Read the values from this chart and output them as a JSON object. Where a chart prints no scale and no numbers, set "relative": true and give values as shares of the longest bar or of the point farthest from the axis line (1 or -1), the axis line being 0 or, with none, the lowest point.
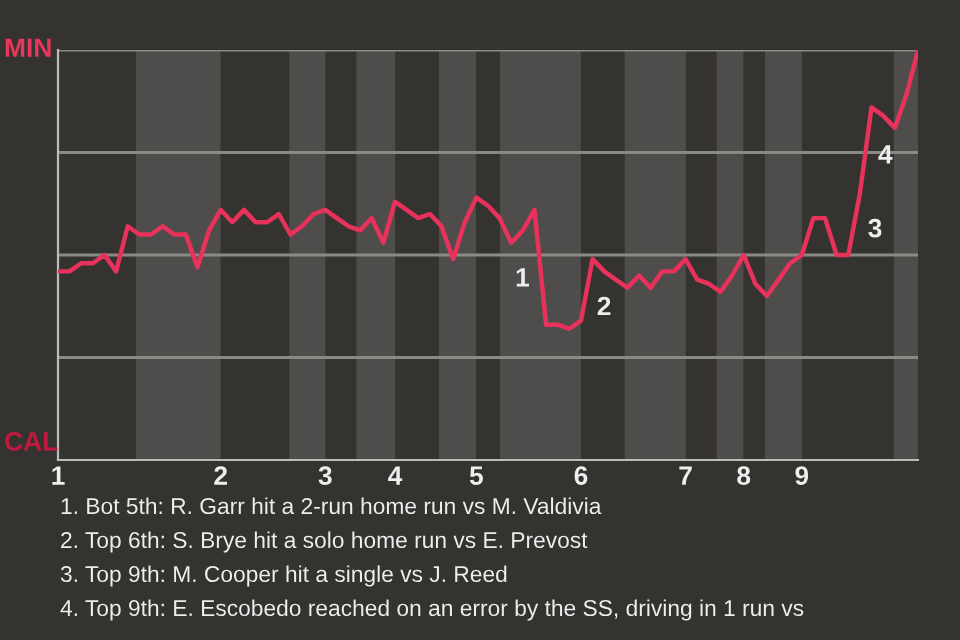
{
  "chart_data": {
    "type": "line",
    "relative": true,
    "categories": [
      "1",
      null,
      null,
      null,
      null,
      null,
      null,
      null,
      null,
      null,
      null,
      null,
      null,
      null,
      "2",
      null,
      null,
      null,
      null,
      null,
      null,
      null,
      null,
      "3",
      null,
      null,
      null,
      null,
      null,
      "4",
      null,
      null,
      null,
      null,
      null,
      null,
      "5",
      null,
      null,
      null,
      null,
      null,
      null,
      null,
      null,
      "6",
      null,
      null,
      null,
      null,
      null,
      null,
      null,
      null,
      "7",
      null,
      null,
      null,
      null,
      "8",
      null,
      null,
      null,
      null,
      "9",
      null,
      null,
      null,
      null,
      null,
      null,
      null,
      null,
      null,
      null
    ],
    "series": [
      {
        "color": "#e8315b",
        "values": [
          0.46,
          0.46,
          0.48,
          0.48,
          0.5,
          0.46,
          0.57,
          0.55,
          0.55,
          0.57,
          0.55,
          0.55,
          0.47,
          0.56,
          0.61,
          0.58,
          0.61,
          0.58,
          0.58,
          0.6,
          0.55,
          0.57,
          0.6,
          0.61,
          0.59,
          0.57,
          0.56,
          0.59,
          0.53,
          0.63,
          0.61,
          0.59,
          0.6,
          0.57,
          0.49,
          0.58,
          0.64,
          0.62,
          0.59,
          0.53,
          0.56,
          0.61,
          0.33,
          0.33,
          0.32,
          0.34,
          0.49,
          0.46,
          0.44,
          0.42,
          0.45,
          0.42,
          0.46,
          0.46,
          0.49,
          0.44,
          0.43,
          0.41,
          0.45,
          0.5,
          0.43,
          0.4,
          0.44,
          0.48,
          0.5,
          0.59,
          0.59,
          0.5,
          0.5,
          0.65,
          0.86,
          0.84,
          0.81,
          0.89,
          1.0
        ]
      }
    ],
    "ref_lines": [
      {
        "axis": "y",
        "value": 0.25,
        "color": "#8a8985"
      },
      {
        "axis": "y",
        "value": 0.5,
        "color": "#8a8985"
      },
      {
        "axis": "y",
        "value": 0.75,
        "color": "#8a8985"
      },
      {
        "axis": "y",
        "value": 1.0,
        "color": "#8a8985"
      }
    ],
    "annotations": [
      "MIN",
      "CAL",
      "1",
      "2",
      "3",
      "4",
      "1. Bot 5th: R. Garr hit a 2-run home run vs M. Valdivia",
      "2. Top 6th: S. Brye hit a solo home run vs E. Prevost",
      "3. Top 9th: M. Cooper hit a single vs J. Reed",
      "4. Top 9th: E. Escobedo reached on an error by the SS, driving in 1 run vs"
    ]
  }
}
